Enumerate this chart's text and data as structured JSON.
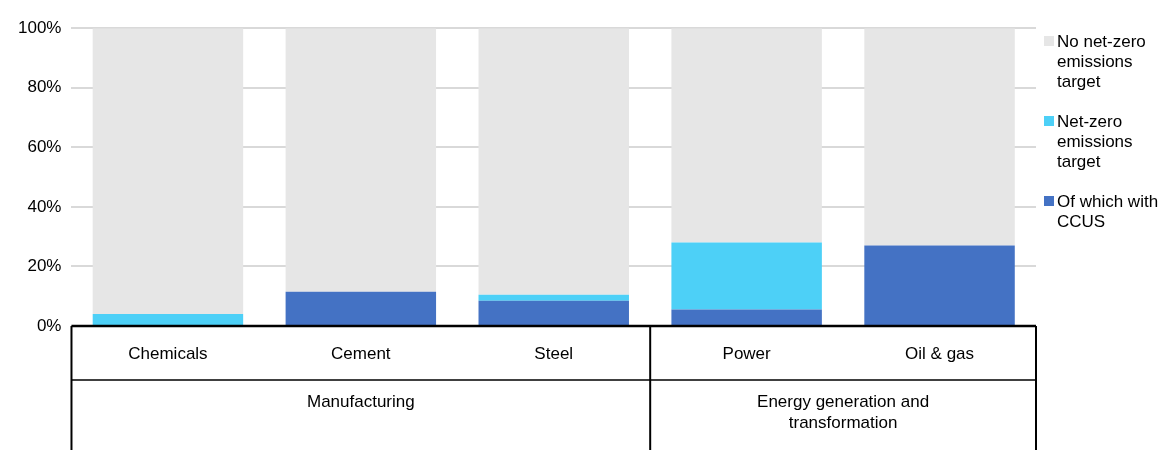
{
  "chart_data": {
    "type": "bar",
    "stacked": true,
    "categories": [
      "Chemicals",
      "Cement",
      "Steel",
      "Power",
      "Oil & gas"
    ],
    "series": [
      {
        "name": "Of which with CCUS",
        "color": "#4472c4",
        "values": [
          0,
          11.5,
          8.5,
          5.5,
          27
        ]
      },
      {
        "name": "Net-zero emissions target",
        "color": "#4dd0f7",
        "values": [
          4,
          0,
          2,
          22.5,
          0
        ]
      },
      {
        "name": "No net-zero emissions target",
        "color": "#e6e6e6",
        "values": [
          96,
          88.5,
          89.5,
          72,
          73
        ]
      }
    ],
    "ylim": [
      0,
      100
    ],
    "yticks": [
      {
        "value": 0,
        "label": "0%"
      },
      {
        "value": 20,
        "label": "20%"
      },
      {
        "value": 40,
        "label": "40%"
      },
      {
        "value": 60,
        "label": "60%"
      },
      {
        "value": 80,
        "label": "80%"
      },
      {
        "value": 100,
        "label": "100%"
      }
    ],
    "grid": "y",
    "legend": "right",
    "annotations": [
      "Manufacturing",
      "Energy generation and transformation"
    ]
  }
}
